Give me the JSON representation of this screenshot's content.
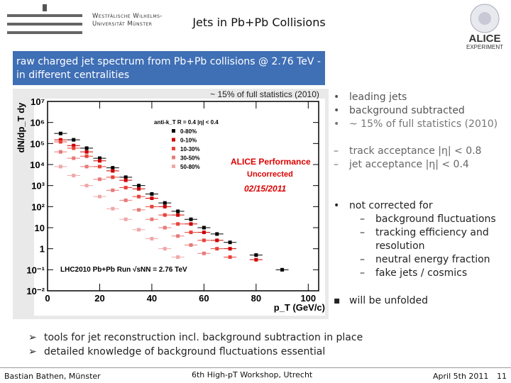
{
  "header": {
    "university": "Westfälische Wilhelms-Universität Münster",
    "title": "Jets in Pb+Pb Collisions",
    "experiment": "ALICE",
    "experiment_sub": "EXPERIMENT"
  },
  "box": {
    "text": "raw charged jet spectrum from Pb+Pb collisions @ 2.76 TeV - in different centralities"
  },
  "plot_note": "~ 15% of full statistics (2010)",
  "chart_data": {
    "type": "scatter",
    "y_label": "dN/dp_T dy",
    "x_label": "p_T (GeV/c)",
    "legend_title": "anti-k_T R = 0.4 |η| < 0.4",
    "annotations": [
      "ALICE Performance",
      "Uncorrected",
      "02/15/2011",
      "LHC2010 Pb+Pb Run √sNN = 2.76 TeV"
    ],
    "log_y": true,
    "xlim": [
      0,
      104
    ],
    "ylim": [
      0.01,
      10000000
    ],
    "xticks": [
      0,
      20,
      40,
      60,
      80,
      100
    ],
    "yticks": [
      {
        "value": 0.01,
        "label": "10⁻²"
      },
      {
        "value": 0.1,
        "label": "10⁻¹"
      },
      1,
      10,
      {
        "value": 100,
        "label": "10²"
      },
      {
        "value": 1000,
        "label": "10³"
      },
      {
        "value": 10000,
        "label": "10⁴"
      },
      {
        "value": 100000,
        "label": "10⁵"
      },
      {
        "value": 1000000,
        "label": "10⁶"
      },
      {
        "value": 10000000,
        "label": "10⁷"
      }
    ],
    "series": [
      {
        "name": "0-80%",
        "color": "#000000",
        "x": [
          5,
          10,
          15,
          20,
          25,
          30,
          35,
          40,
          45,
          50,
          55,
          60,
          65,
          70,
          80,
          90
        ],
        "values": [
          300000,
          150000,
          60000,
          20000,
          7000,
          2500,
          1000,
          400,
          150,
          60,
          25,
          10,
          5,
          2,
          0.5,
          0.1
        ]
      },
      {
        "name": "0-10%",
        "color": "#cc0000",
        "x": [
          5,
          10,
          15,
          20,
          25,
          30,
          35,
          40,
          45,
          50,
          55,
          60,
          65,
          70,
          80
        ],
        "values": [
          150000,
          80000,
          40000,
          15000,
          5000,
          1800,
          700,
          250,
          100,
          40,
          15,
          6,
          2.5,
          1,
          0.3
        ]
      },
      {
        "name": "10-30%",
        "color": "#e8433a",
        "x": [
          5,
          10,
          15,
          20,
          25,
          30,
          35,
          40,
          45,
          50,
          55,
          60,
          65,
          70
        ],
        "values": [
          120000,
          60000,
          25000,
          8000,
          2500,
          800,
          300,
          100,
          40,
          15,
          6,
          2.5,
          1,
          0.4
        ]
      },
      {
        "name": "30-50%",
        "color": "#e87a7a",
        "x": [
          5,
          10,
          15,
          20,
          25,
          30,
          35,
          40,
          45,
          50,
          55,
          60
        ],
        "values": [
          40000,
          20000,
          8000,
          2000,
          600,
          200,
          70,
          25,
          10,
          4,
          1.5,
          0.6
        ]
      },
      {
        "name": "50-80%",
        "color": "#f0a8a8",
        "x": [
          5,
          10,
          15,
          20,
          25,
          30,
          35,
          40,
          45,
          50
        ],
        "values": [
          8000,
          3000,
          1000,
          300,
          80,
          25,
          8,
          3,
          1,
          0.4
        ]
      }
    ]
  },
  "bullets_right": {
    "group1": [
      "leading jets",
      "background subtracted",
      "~ 15% of full statistics (2010)"
    ],
    "group2": [
      "track acceptance  |η| < 0.8",
      "jet acceptance |η| < 0.4"
    ],
    "not_corrected": "not corrected for",
    "sub": [
      "background fluctuations",
      "tracking efficiency and resolution",
      "neutral energy fraction",
      "fake jets / cosmics"
    ],
    "unfolded": "will be unfolded"
  },
  "bullets_bottom": [
    "tools for jet reconstruction incl. background subtraction in place",
    "detailed knowledge of background fluctuations essential"
  ],
  "footer": {
    "author": "Bastian Bathen, Münster",
    "event": "6th High-pT Workshop, Utrecht",
    "date": "April 5th 2011",
    "page": "11"
  }
}
